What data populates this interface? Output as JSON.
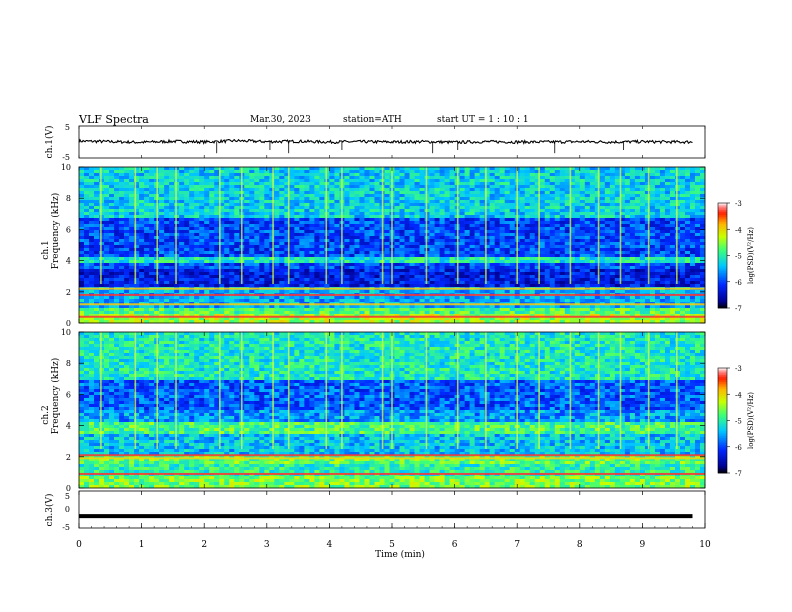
{
  "header": {
    "title": "VLF  Spectra",
    "date": "Mar.30, 2023",
    "station": "station=ATH",
    "start": "start  UT  =   1  : 10 : 1"
  },
  "chart_data": [
    {
      "type": "line",
      "name": "ch1_waveform",
      "ylabel": "ch.1(V)",
      "ylim": [
        -5,
        5
      ],
      "yticks": [
        "5",
        "-5"
      ],
      "color": "#000000",
      "x": [
        0.0,
        0.5,
        1.0,
        1.5,
        2.0,
        2.5,
        3.0,
        3.5,
        4.0,
        4.5,
        5.0,
        5.5,
        6.0,
        6.5,
        7.0,
        7.5,
        8.0,
        8.5,
        9.0,
        9.5,
        9.8
      ],
      "y": [
        0.3,
        0.1,
        -0.1,
        0.2,
        0.0,
        0.4,
        0.1,
        0.2,
        0.0,
        0.1,
        0.0,
        0.1,
        -0.1,
        0.1,
        0.0,
        0.0,
        0.1,
        0.0,
        0.1,
        0.0,
        0.0
      ],
      "spikes_x": [
        2.2,
        3.05,
        3.35,
        4.2,
        5.65,
        6.05,
        7.6,
        8.7
      ]
    },
    {
      "type": "heatmap",
      "name": "ch1_spectrogram",
      "ylabel_top": "ch.1",
      "ylabel": "Frequency (kHz)",
      "ylim": [
        0,
        10
      ],
      "yticks": [
        "0",
        "2",
        "4",
        "6",
        "8",
        "10"
      ],
      "colorbar": {
        "label": "log(PSD)(V²/Hz)",
        "ticks": [
          "-3",
          "-4",
          "-5",
          "-6",
          "-7"
        ],
        "range": [
          -7,
          -3
        ]
      },
      "bands": [
        {
          "from_khz": 0.0,
          "to_khz": 0.6,
          "log_psd": -4.4
        },
        {
          "from_khz": 0.6,
          "to_khz": 1.0,
          "log_psd": -4.8
        },
        {
          "from_khz": 1.0,
          "to_khz": 2.4,
          "log_psd": -5.5
        },
        {
          "from_khz": 2.4,
          "to_khz": 3.4,
          "log_psd": -6.3
        },
        {
          "from_khz": 3.4,
          "to_khz": 3.8,
          "log_psd": -6.0
        },
        {
          "from_khz": 3.8,
          "to_khz": 4.3,
          "log_psd": -5.1
        },
        {
          "from_khz": 4.3,
          "to_khz": 6.8,
          "log_psd": -6.0
        },
        {
          "from_khz": 6.8,
          "to_khz": 10.0,
          "log_psd": -5.3
        }
      ],
      "line_freqs_khz": [
        0.4,
        1.2,
        1.8,
        2.2
      ],
      "sferics_x_min": [
        0.35,
        0.9,
        1.25,
        1.55,
        2.25,
        2.6,
        3.1,
        3.35,
        3.95,
        4.2,
        4.85,
        5.0,
        5.55,
        6.05,
        6.5,
        7.0,
        7.35,
        7.85,
        8.3,
        8.65,
        9.1,
        9.55
      ]
    },
    {
      "type": "heatmap",
      "name": "ch2_spectrogram",
      "ylabel_top": "ch.2",
      "ylabel": "Frequency (kHz)",
      "ylim": [
        0,
        10
      ],
      "yticks": [
        "0",
        "2",
        "4",
        "6",
        "8",
        "10"
      ],
      "colorbar": {
        "label": "log(PSD)(V²/Hz)",
        "ticks": [
          "-3",
          "-4",
          "-5",
          "-6",
          "-7"
        ],
        "range": [
          -7,
          -3
        ]
      },
      "bands": [
        {
          "from_khz": 0.0,
          "to_khz": 0.8,
          "log_psd": -4.6
        },
        {
          "from_khz": 0.8,
          "to_khz": 1.5,
          "log_psd": -5.0
        },
        {
          "from_khz": 1.5,
          "to_khz": 2.2,
          "log_psd": -4.7
        },
        {
          "from_khz": 2.2,
          "to_khz": 3.5,
          "log_psd": -5.4
        },
        {
          "from_khz": 3.5,
          "to_khz": 4.3,
          "log_psd": -4.8
        },
        {
          "from_khz": 4.3,
          "to_khz": 5.0,
          "log_psd": -5.6
        },
        {
          "from_khz": 5.0,
          "to_khz": 7.0,
          "log_psd": -5.9
        },
        {
          "from_khz": 7.0,
          "to_khz": 10.0,
          "log_psd": -5.1
        }
      ],
      "line_freqs_khz": [
        0.9,
        1.9,
        2.1
      ],
      "sferics_x_min": [
        0.35,
        0.9,
        1.25,
        1.55,
        2.25,
        2.6,
        3.1,
        3.35,
        3.95,
        4.2,
        4.85,
        5.0,
        5.55,
        6.05,
        6.5,
        7.0,
        7.35,
        7.85,
        8.3,
        8.65,
        9.1,
        9.55
      ]
    },
    {
      "type": "line",
      "name": "ch3_waveform",
      "ylabel": "ch.3(V)",
      "ylim": [
        -5,
        5
      ],
      "yticks": [
        "5",
        "0",
        "-5"
      ],
      "color": "#000000",
      "x": [
        0.0,
        9.8
      ],
      "y": [
        -1.8,
        -1.8
      ]
    }
  ],
  "xaxis": {
    "label": "Time  (min)",
    "range": [
      0,
      10
    ],
    "ticks": [
      "0",
      "1",
      "2",
      "3",
      "4",
      "5",
      "6",
      "7",
      "8",
      "9",
      "10"
    ]
  }
}
